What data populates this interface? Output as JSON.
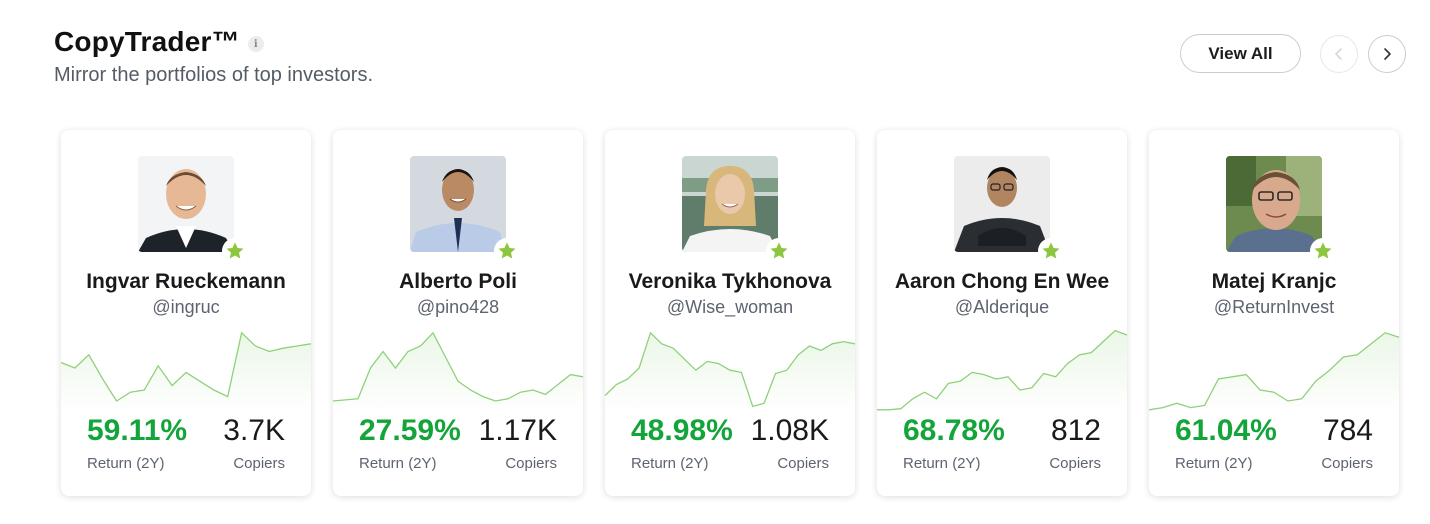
{
  "header": {
    "title": "CopyTrader™",
    "subtitle": "Mirror the portfolios of top investors.",
    "info_icon": "i"
  },
  "controls": {
    "view_all_label": "View All",
    "prev_icon": "chevron-left-icon",
    "next_icon": "chevron-right-icon"
  },
  "colors": {
    "return_green": "#13a53a",
    "star_green": "#8cc63f",
    "sparkline": "#8fd17a"
  },
  "investors": [
    {
      "name": "Ingvar Rueckemann",
      "handle": "@ingruc",
      "return": "59.11%",
      "return_label": "Return (2Y)",
      "copiers": "3.7K",
      "copiers_label": "Copiers",
      "trend": [
        45,
        40,
        52,
        30,
        10,
        18,
        20,
        42,
        24,
        36,
        28,
        20,
        14,
        72,
        60,
        55,
        58,
        60,
        62
      ]
    },
    {
      "name": "Alberto Poli",
      "handle": "@pino428",
      "return": "27.59%",
      "return_label": "Return (2Y)",
      "copiers": "1.17K",
      "copiers_label": "Copiers",
      "trend": [
        10,
        11,
        12,
        40,
        55,
        40,
        55,
        60,
        72,
        50,
        28,
        20,
        14,
        10,
        12,
        18,
        20,
        16,
        25,
        34,
        32
      ]
    },
    {
      "name": "Veronika Tykhonova",
      "handle": "@Wise_woman",
      "return": "48.98%",
      "return_label": "Return (2Y)",
      "copiers": "1.08K",
      "copiers_label": "Copiers",
      "trend": [
        15,
        25,
        30,
        40,
        72,
        62,
        58,
        48,
        38,
        46,
        44,
        38,
        36,
        5,
        8,
        35,
        38,
        52,
        60,
        56,
        62,
        64,
        62
      ]
    },
    {
      "name": "Aaron Chong En Wee",
      "handle": "@Alderique",
      "return": "68.78%",
      "return_label": "Return (2Y)",
      "copiers": "812",
      "copiers_label": "Copiers",
      "trend": [
        2,
        2,
        3,
        12,
        18,
        12,
        26,
        28,
        36,
        34,
        30,
        32,
        20,
        22,
        35,
        32,
        44,
        52,
        54,
        64,
        74,
        70
      ]
    },
    {
      "name": "Matej Kranjc",
      "handle": "@ReturnInvest",
      "return": "61.04%",
      "return_label": "Return (2Y)",
      "copiers": "784",
      "copiers_label": "Copiers",
      "trend": [
        2,
        4,
        8,
        4,
        6,
        30,
        32,
        34,
        20,
        18,
        10,
        12,
        28,
        38,
        50,
        52,
        62,
        72,
        68
      ]
    }
  ]
}
